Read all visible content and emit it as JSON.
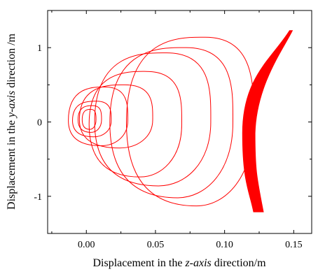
{
  "chart_data": {
    "type": "line",
    "title": "",
    "xlabel_parts": [
      "Displacement in the ",
      "z-axis",
      " direction/m"
    ],
    "ylabel_parts": [
      "Displacement in the ",
      "y-axis",
      " direction /m"
    ],
    "xlim": [
      -0.028,
      0.163
    ],
    "ylim": [
      -1.5,
      1.5
    ],
    "xticks": [
      {
        "value": 0.0,
        "label": "0.00"
      },
      {
        "value": 0.05,
        "label": "0.05"
      },
      {
        "value": 0.1,
        "label": "0.10"
      },
      {
        "value": 0.15,
        "label": "0.15"
      }
    ],
    "yticks": [
      {
        "value": 1,
        "label": "1"
      },
      {
        "value": 0,
        "label": "0"
      },
      {
        "value": -1,
        "label": "-1"
      }
    ],
    "grid": false,
    "legend": "none",
    "colors": {
      "series": "#ff0000",
      "axes": "#000000"
    },
    "series": [
      {
        "style": "spiral trajectory (outward growing loops, ending in dense crescent)",
        "loops": [
          {
            "left": -0.003,
            "right": 0.007,
            "top": 0.17,
            "bottom": -0.1,
            "cy": 0.03
          },
          {
            "left": -0.006,
            "right": 0.011,
            "top": 0.22,
            "bottom": -0.14,
            "cy": 0.03
          },
          {
            "left": -0.01,
            "right": 0.018,
            "top": 0.28,
            "bottom": -0.2,
            "cy": 0.02
          },
          {
            "left": -0.013,
            "right": 0.03,
            "top": 0.47,
            "bottom": -0.32,
            "cy": 0.02
          },
          {
            "left": -0.005,
            "right": 0.048,
            "top": 0.5,
            "bottom": -0.35,
            "cy": 0.03
          },
          {
            "left": 0.002,
            "right": 0.069,
            "top": 0.68,
            "bottom": -0.74,
            "cy": -0.03
          },
          {
            "left": 0.006,
            "right": 0.09,
            "top": 0.93,
            "bottom": -0.86,
            "cy": 0.0
          },
          {
            "left": 0.017,
            "right": 0.106,
            "top": 1.0,
            "bottom": -1.02,
            "cy": -0.01
          },
          {
            "left": 0.029,
            "right": 0.121,
            "top": 1.14,
            "bottom": -1.13,
            "cy": -0.01
          }
        ],
        "crescent_envelope": {
          "top_z": 0.147,
          "top_y": 1.23,
          "bottom_z": 0.124,
          "bottom_y": -1.21,
          "left_mid_z": 0.113,
          "right_mid_z": 0.122,
          "mid_y": -0.15
        }
      }
    ]
  }
}
